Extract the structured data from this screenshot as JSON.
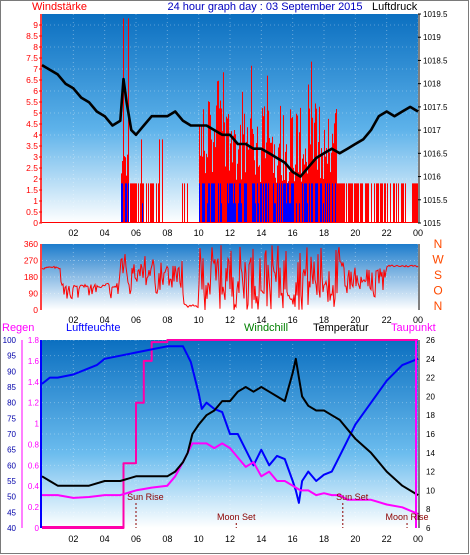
{
  "header": {
    "left_label": "Windstärke",
    "title": "24 hour graph day : 03 September 2015",
    "right_label": "Luftdruck"
  },
  "bottom_header": {
    "regen": "Regen",
    "luftfeuchte": "Luftfeuchte",
    "windchill": "Windchill",
    "temperatur": "Temperatur",
    "taupunkt": "Taupunkt"
  },
  "colors": {
    "wind_speed": "#ff0000",
    "wind_gust": "#0000ff",
    "pressure": "#000000",
    "humidity": "#0000ff",
    "temperature": "#000000",
    "dewpoint": "#ff00ff",
    "rain": "#ff0000",
    "windchill": "#008000",
    "frame": "#1a6fc4"
  },
  "chart_data": [
    {
      "type": "bar",
      "name": "wind-pressure",
      "x_ticks": [
        "02",
        "04",
        "06",
        "08",
        "10",
        "12",
        "14",
        "16",
        "18",
        "20",
        "22",
        "00"
      ],
      "left_axis": {
        "label": "Windstärke",
        "ylim": [
          0,
          9.5
        ],
        "ticks": [
          "0",
          "0.5",
          "1",
          "1.5",
          "2",
          "2.5",
          "3",
          "3.5",
          "4",
          "4.5",
          "5",
          "5.5",
          "6",
          "6.5",
          "7",
          "7.5",
          "8",
          "8.5",
          "9"
        ]
      },
      "right_axis": {
        "label": "Luftdruck",
        "ylim": [
          1015,
          1019.5
        ],
        "ticks": [
          "1015",
          "1015.5",
          "1016",
          "1016.5",
          "1017",
          "1017.5",
          "1018",
          "1018.5",
          "1019",
          "1019.5"
        ]
      },
      "series": [
        {
          "name": "Luftdruck",
          "axis": "right",
          "x": [
            0,
            0.5,
            1,
            1.5,
            2,
            2.5,
            3,
            3.5,
            4,
            4.5,
            5,
            5.2,
            5.4,
            5.7,
            6,
            6.5,
            7,
            7.5,
            8,
            8.5,
            9,
            9.5,
            10,
            10.5,
            11,
            11.5,
            12,
            12.5,
            13,
            13.5,
            14,
            14.5,
            15,
            15.5,
            16,
            16.5,
            17,
            17.5,
            18,
            18.5,
            19,
            19.5,
            20,
            20.5,
            21,
            21.5,
            22,
            22.5,
            23,
            23.5,
            24
          ],
          "y": [
            1018.4,
            1018.3,
            1018.2,
            1018.0,
            1017.9,
            1017.7,
            1017.6,
            1017.4,
            1017.3,
            1017.1,
            1017.2,
            1018.1,
            1017.6,
            1017.0,
            1016.9,
            1017.1,
            1017.3,
            1017.3,
            1017.3,
            1017.4,
            1017.2,
            1017.1,
            1017.1,
            1017.1,
            1017.0,
            1016.9,
            1016.9,
            1016.7,
            1016.7,
            1016.6,
            1016.6,
            1016.5,
            1016.4,
            1016.3,
            1016.1,
            1016.0,
            1016.2,
            1016.4,
            1016.5,
            1016.6,
            1016.5,
            1016.6,
            1016.7,
            1016.8,
            1017.0,
            1017.3,
            1017.4,
            1017.3,
            1017.4,
            1017.5,
            1017.4
          ]
        }
      ]
    },
    {
      "type": "line",
      "name": "wind-direction",
      "x_ticks": [
        "02",
        "04",
        "06",
        "08",
        "10",
        "12",
        "14",
        "16",
        "18",
        "20",
        "22",
        "00"
      ],
      "left_axis": {
        "ylim": [
          0,
          360
        ],
        "ticks": [
          "0",
          "90",
          "180",
          "270",
          "360"
        ]
      },
      "right_axis": {
        "ticks": [
          "N",
          "W",
          "S",
          "O",
          "N"
        ]
      }
    },
    {
      "type": "line",
      "name": "humidity-temperature",
      "x_ticks": [
        "02",
        "04",
        "06",
        "08",
        "10",
        "12",
        "14",
        "16",
        "18",
        "20",
        "22",
        "00"
      ],
      "axes": [
        {
          "label": "Regen",
          "ylim": [
            0,
            1.8
          ],
          "ticks": [
            "0",
            "0.2",
            "0.4",
            "0.6",
            "0.8",
            "1",
            "1.2",
            "1.4",
            "1.6",
            "1.8"
          ]
        },
        {
          "label": "Luftfeuchte",
          "ylim": [
            40,
            100
          ],
          "ticks": [
            "40",
            "45",
            "50",
            "55",
            "60",
            "65",
            "70",
            "75",
            "80",
            "85",
            "90",
            "95",
            "100"
          ]
        },
        {
          "label": "Temperatur",
          "ylim": [
            6,
            26
          ],
          "ticks": [
            "6",
            "8",
            "10",
            "12",
            "14",
            "16",
            "18",
            "20",
            "22",
            "24",
            "26"
          ]
        }
      ],
      "series": [
        {
          "name": "Luftfeuchte",
          "axis": "Luftfeuchte",
          "x": [
            0,
            0.5,
            1,
            2,
            3,
            3.5,
            4,
            5,
            6,
            7,
            8,
            9,
            9.5,
            10,
            10.2,
            10.5,
            11,
            11.5,
            12,
            12.5,
            13,
            13.5,
            14,
            14.5,
            15,
            15.5,
            16,
            16.2,
            16.4,
            16.6,
            17,
            17.5,
            18,
            18.5,
            19,
            19.5,
            20,
            21,
            22,
            23,
            24
          ],
          "y": [
            86,
            88,
            88,
            89,
            91,
            92,
            94,
            95,
            96,
            97,
            98,
            98,
            93,
            83,
            78,
            80,
            78,
            77,
            70,
            70,
            65,
            60,
            65,
            60,
            63,
            62,
            55,
            52,
            48,
            55,
            58,
            55,
            57,
            58,
            63,
            68,
            73,
            80,
            87,
            92,
            94
          ]
        },
        {
          "name": "Temperatur",
          "axis": "Temperatur",
          "x": [
            0,
            0.5,
            1,
            2,
            3,
            4,
            5,
            6,
            7,
            8,
            8.5,
            9,
            9.3,
            9.6,
            10,
            10.5,
            11,
            11.5,
            12,
            12.5,
            13,
            13.5,
            14,
            14.5,
            15,
            15.5,
            16,
            16.2,
            16.4,
            16.6,
            17,
            17.5,
            18,
            18.5,
            19,
            19.5,
            20,
            21,
            22,
            23,
            24
          ],
          "y": [
            11.5,
            11,
            10.5,
            10.5,
            10.5,
            11,
            11,
            11.5,
            11.5,
            11.5,
            12,
            13,
            14,
            16,
            17,
            18,
            18.5,
            19.5,
            19.5,
            20.5,
            21,
            20.5,
            21,
            20.5,
            20,
            19.5,
            22.5,
            24,
            22,
            20,
            19,
            18.5,
            18.5,
            18,
            17.5,
            16.5,
            15.5,
            14,
            12,
            10.5,
            9.5
          ]
        },
        {
          "name": "Taupunkt",
          "axis": "Temperatur",
          "x": [
            0,
            0.5,
            1,
            2,
            3,
            4,
            5,
            6,
            7,
            8,
            8.5,
            9,
            9.3,
            9.6,
            10,
            10.5,
            11,
            11.5,
            12,
            12.5,
            13,
            13.5,
            14,
            14.5,
            15,
            15.5,
            16,
            16.5,
            17,
            17.5,
            18,
            18.5,
            19,
            19.5,
            20,
            21,
            22,
            23,
            24
          ],
          "y": [
            9.5,
            9.5,
            9.5,
            9.2,
            9.3,
            9.5,
            9.5,
            10,
            10.3,
            10.5,
            11.5,
            13,
            14,
            15,
            15,
            15,
            14.5,
            15,
            14.5,
            13.5,
            12.5,
            13,
            11.5,
            12,
            11,
            11,
            10.5,
            10,
            10,
            9.5,
            9.7,
            9.5,
            9.5,
            9,
            9,
            9,
            8.5,
            8.2,
            7.5
          ]
        },
        {
          "name": "Regen",
          "axis": "Regen",
          "x": [
            0,
            5.2,
            5.2,
            6,
            6,
            6.5,
            6.5,
            7,
            7,
            8,
            8,
            9,
            9,
            24
          ],
          "y": [
            0,
            0,
            0.62,
            0.62,
            1.2,
            1.2,
            1.6,
            1.6,
            1.78,
            1.78,
            1.8,
            1.8,
            1.8,
            1.8
          ]
        }
      ],
      "annotations": [
        {
          "text": "Sun Rise",
          "x": 6.6
        },
        {
          "text": "Moon Set",
          "x": 12.4
        },
        {
          "text": "Sun Set",
          "x": 19.8
        },
        {
          "text": "Moon Rise",
          "x": 23.3
        }
      ]
    }
  ]
}
